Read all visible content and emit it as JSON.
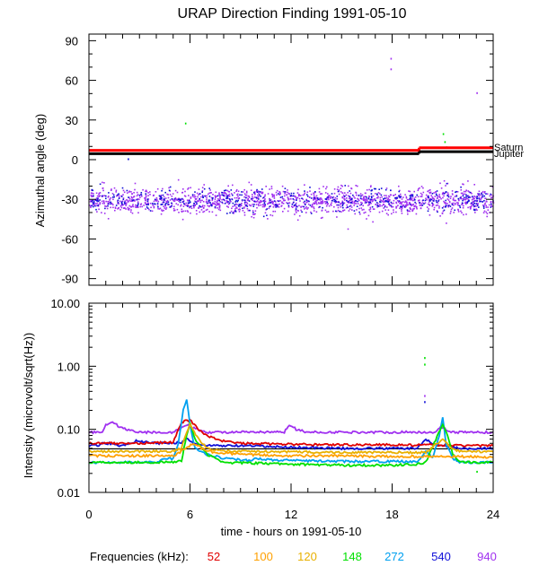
{
  "chart_data": [
    {
      "type": "scatter",
      "title": "URAP Direction Finding  1991-05-10",
      "ylabel": "Azimuthal angle (deg)",
      "ylim": [
        -95,
        95
      ],
      "xlim": [
        0,
        24
      ],
      "yticks": [
        90,
        60,
        30,
        0,
        -30,
        -60,
        -90
      ],
      "tick_labels": [
        "90",
        "60",
        "30",
        "0",
        "-30",
        "-60",
        "-90"
      ],
      "reference_lines": [
        {
          "name": "Saturn",
          "color": "#ff0000",
          "segments": [
            {
              "x": [
                0,
                19.6
              ],
              "y": 7
            },
            {
              "x": [
                19.6,
                24
              ],
              "y": 9
            }
          ]
        },
        {
          "name": "Jupiter",
          "color": "#000000",
          "segments": [
            {
              "x": [
                0,
                19.6
              ],
              "y": 4.5
            },
            {
              "x": [
                19.6,
                24
              ],
              "y": 6
            }
          ]
        }
      ],
      "series": [
        {
          "color": "#a030f0",
          "x_range": [
            0,
            24
          ],
          "y_center": -31,
          "y_spread": 11
        },
        {
          "color": "#1010d8",
          "x_range": [
            0,
            24
          ],
          "y_center": -30,
          "y_spread": 10
        }
      ],
      "outliers": [
        {
          "x": 5.7,
          "y": 28,
          "color": "#00e000"
        },
        {
          "x": 17.9,
          "y": 77,
          "color": "#a030f0"
        },
        {
          "x": 17.9,
          "y": 69,
          "color": "#a030f0"
        },
        {
          "x": 23.0,
          "y": 51,
          "color": "#a030f0"
        },
        {
          "x": 21.0,
          "y": 20,
          "color": "#00e000"
        },
        {
          "x": 21.1,
          "y": 14,
          "color": "#00e000"
        },
        {
          "x": 21.2,
          "y": 10,
          "color": "#00e000"
        },
        {
          "x": 2.3,
          "y": 1,
          "color": "#1010d8"
        }
      ]
    },
    {
      "type": "line",
      "ylabel": "Intensity (microvolt/sqrt(Hz))",
      "xlabel": "time - hours on 1991-05-10",
      "yscale": "log",
      "ylim": [
        0.01,
        10
      ],
      "xlim": [
        0,
        24
      ],
      "yticks": [
        10,
        1,
        0.1,
        0.01
      ],
      "tick_labels": [
        "10.00",
        "1.00",
        "0.10",
        "0.01"
      ],
      "xticks": [
        0,
        6,
        12,
        18,
        24
      ],
      "xtick_labels": [
        "0",
        "6",
        "12",
        "18",
        "24"
      ],
      "series": [
        {
          "name": "940",
          "color": "#a030f0",
          "x": [
            0,
            0.8,
            1.0,
            1.4,
            1.8,
            2.2,
            2.6,
            3.0,
            5.0,
            5.4,
            5.6,
            5.8,
            6.0,
            6.4,
            7.0,
            11.6,
            11.9,
            12.3,
            13.0,
            20.5,
            20.9,
            21.2,
            21.5,
            24
          ],
          "y": [
            0.09,
            0.09,
            0.12,
            0.13,
            0.11,
            0.1,
            0.095,
            0.09,
            0.09,
            0.1,
            0.11,
            0.12,
            0.11,
            0.1,
            0.09,
            0.09,
            0.12,
            0.1,
            0.09,
            0.09,
            0.11,
            0.1,
            0.09,
            0.09
          ]
        },
        {
          "name": "540",
          "color": "#1010d8",
          "x": [
            0,
            0.5,
            0.8,
            1.2,
            1.8,
            2.4,
            2.8,
            4.0,
            5.5,
            5.8,
            6.2,
            7.0,
            9.0,
            12.0,
            15.0,
            18.0,
            19.5,
            20.0,
            20.4,
            21.0,
            21.5,
            22.0,
            24
          ],
          "y": [
            0.055,
            0.055,
            0.06,
            0.06,
            0.055,
            0.06,
            0.065,
            0.06,
            0.062,
            0.07,
            0.06,
            0.055,
            0.055,
            0.052,
            0.05,
            0.05,
            0.05,
            0.07,
            0.06,
            0.055,
            0.052,
            0.05,
            0.05
          ]
        },
        {
          "name": "52",
          "color": "#e00000",
          "x": [
            0,
            2.5,
            5.0,
            5.5,
            6.0,
            6.5,
            7.0,
            8.0,
            9.0,
            12.0,
            15.0,
            18.0,
            19.5,
            20.5,
            21.5,
            22.5,
            24
          ],
          "y": [
            0.06,
            0.06,
            0.062,
            0.13,
            0.14,
            0.1,
            0.08,
            0.065,
            0.06,
            0.058,
            0.057,
            0.057,
            0.056,
            0.057,
            0.056,
            0.055,
            0.055
          ]
        },
        {
          "name": "272",
          "color": "#00a0f0",
          "x": [
            0,
            2.0,
            4.0,
            4.5,
            5.0,
            5.3,
            5.6,
            5.8,
            6.0,
            6.3,
            7.0,
            8.0,
            9.5,
            10.0,
            10.5,
            12.0,
            15.0,
            18.0,
            19.5,
            20.0,
            20.4,
            20.8,
            21.0,
            21.2,
            21.6,
            22.0,
            24
          ],
          "y": [
            0.03,
            0.03,
            0.03,
            0.035,
            0.034,
            0.06,
            0.2,
            0.3,
            0.12,
            0.05,
            0.04,
            0.035,
            0.032,
            0.035,
            0.033,
            0.032,
            0.031,
            0.031,
            0.031,
            0.045,
            0.035,
            0.08,
            0.15,
            0.06,
            0.035,
            0.03,
            0.03
          ]
        },
        {
          "name": "148",
          "color": "#00e000",
          "x": [
            0,
            2.0,
            5.0,
            5.5,
            5.8,
            6.0,
            6.3,
            7.0,
            8.0,
            12.0,
            15.0,
            18.0,
            19.5,
            20.0,
            21.0,
            21.3,
            21.6,
            22.0,
            24
          ],
          "y": [
            0.03,
            0.03,
            0.03,
            0.032,
            0.08,
            0.13,
            0.07,
            0.04,
            0.03,
            0.028,
            0.027,
            0.027,
            0.028,
            0.03,
            0.12,
            0.08,
            0.04,
            0.03,
            0.03
          ]
        },
        {
          "name": "120",
          "color": "#e8b000",
          "x": [
            0,
            2.0,
            5.0,
            5.5,
            5.8,
            6.0,
            6.5,
            7.0,
            8.0,
            12.0,
            15.0,
            18.0,
            20.0,
            21.0,
            21.5,
            22.0,
            24
          ],
          "y": [
            0.045,
            0.045,
            0.045,
            0.05,
            0.09,
            0.12,
            0.07,
            0.05,
            0.045,
            0.044,
            0.043,
            0.043,
            0.043,
            0.07,
            0.05,
            0.045,
            0.044
          ]
        },
        {
          "name": "100",
          "color": "#ffa000",
          "x": [
            0,
            2.0,
            5.0,
            5.8,
            6.2,
            7.0,
            9.0,
            12.0,
            15.0,
            18.0,
            20.0,
            22.0,
            24
          ],
          "y": [
            0.038,
            0.038,
            0.038,
            0.05,
            0.06,
            0.045,
            0.04,
            0.038,
            0.038,
            0.037,
            0.037,
            0.037,
            0.036
          ]
        }
      ]
    }
  ],
  "legend": {
    "label": "Frequencies (kHz):",
    "items": [
      {
        "label": "52",
        "color": "#e00000"
      },
      {
        "label": "100",
        "color": "#ffa000"
      },
      {
        "label": "120",
        "color": "#e8b000"
      },
      {
        "label": "148",
        "color": "#00e000"
      },
      {
        "label": "272",
        "color": "#00a0f0"
      },
      {
        "label": "540",
        "color": "#1010d8"
      },
      {
        "label": "940",
        "color": "#a030f0"
      }
    ]
  },
  "annotations": {
    "saturn": "Saturn",
    "jupiter": "Jupiter"
  }
}
